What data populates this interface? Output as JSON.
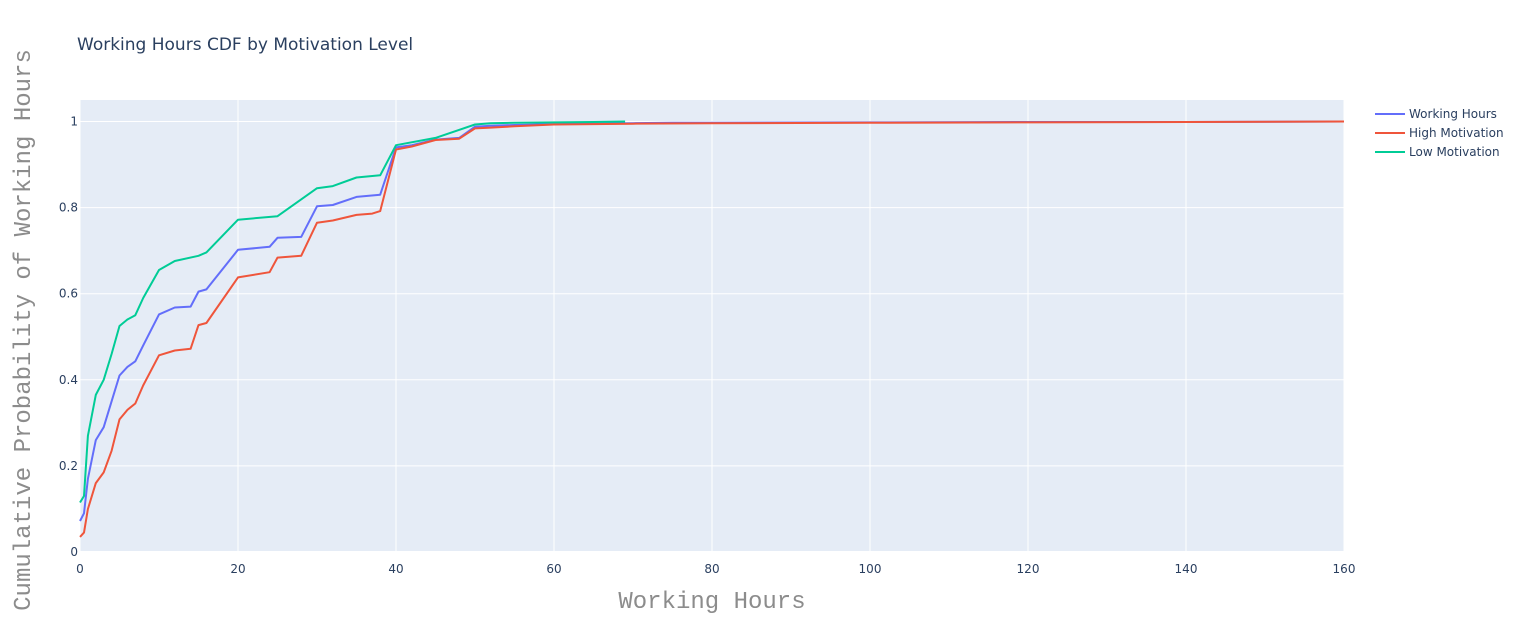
{
  "chart_data": {
    "type": "line",
    "title": "Working Hours CDF by Motivation Level",
    "xlabel": "Working Hours",
    "ylabel": "Cumulative Probability of Working Hours",
    "xlim": [
      0,
      160
    ],
    "ylim": [
      0,
      1.05
    ],
    "x_ticks": [
      0,
      20,
      40,
      60,
      80,
      100,
      120,
      140,
      160
    ],
    "y_ticks": [
      0,
      0.2,
      0.4,
      0.6,
      0.8,
      1
    ],
    "y_tick_labels": [
      "0",
      "0.2",
      "0.4",
      "0.6",
      "0.8",
      "1"
    ],
    "grid": true,
    "legend_position": "top-right",
    "series": [
      {
        "name": "Working Hours",
        "color": "#636efa",
        "x": [
          0,
          0.5,
          1,
          2,
          3,
          4,
          5,
          6,
          7,
          8,
          10,
          12,
          14,
          15,
          16,
          20,
          24,
          25,
          28,
          30,
          32,
          35,
          38,
          40,
          42,
          45,
          48,
          50,
          52,
          55,
          60,
          70,
          75,
          80,
          100,
          120,
          140,
          160
        ],
        "y": [
          0.072,
          0.09,
          0.17,
          0.26,
          0.29,
          0.35,
          0.41,
          0.43,
          0.443,
          0.48,
          0.552,
          0.568,
          0.57,
          0.605,
          0.61,
          0.702,
          0.709,
          0.73,
          0.732,
          0.803,
          0.806,
          0.825,
          0.83,
          0.94,
          0.945,
          0.958,
          0.962,
          0.988,
          0.99,
          0.992,
          0.994,
          0.996,
          0.997,
          0.997,
          0.998,
          0.999,
          0.999,
          1.0
        ]
      },
      {
        "name": "High Motivation",
        "color": "#ef553b",
        "x": [
          0,
          0.5,
          1,
          2,
          3,
          4,
          5,
          6,
          7,
          8,
          10,
          12,
          14,
          15,
          16,
          20,
          24,
          25,
          28,
          30,
          32,
          35,
          37,
          38,
          40,
          42,
          45,
          48,
          50,
          52,
          55,
          60,
          70,
          80,
          100,
          120,
          140,
          160
        ],
        "y": [
          0.035,
          0.045,
          0.1,
          0.16,
          0.185,
          0.235,
          0.308,
          0.33,
          0.345,
          0.387,
          0.457,
          0.468,
          0.472,
          0.527,
          0.532,
          0.638,
          0.65,
          0.684,
          0.688,
          0.765,
          0.77,
          0.783,
          0.786,
          0.792,
          0.935,
          0.942,
          0.957,
          0.96,
          0.984,
          0.986,
          0.989,
          0.993,
          0.995,
          0.996,
          0.997,
          0.998,
          0.999,
          1.0
        ]
      },
      {
        "name": "Low Motivation",
        "color": "#00cc96",
        "x": [
          0,
          0.5,
          1,
          2,
          3,
          4,
          5,
          6,
          7,
          8,
          10,
          12,
          15,
          16,
          20,
          25,
          30,
          32,
          35,
          38,
          40,
          45,
          50,
          52,
          55,
          60,
          65,
          69
        ],
        "y": [
          0.115,
          0.13,
          0.27,
          0.365,
          0.4,
          0.46,
          0.525,
          0.54,
          0.55,
          0.59,
          0.655,
          0.676,
          0.688,
          0.696,
          0.772,
          0.78,
          0.845,
          0.85,
          0.87,
          0.875,
          0.945,
          0.962,
          0.993,
          0.996,
          0.997,
          0.998,
          0.999,
          1.0
        ]
      }
    ]
  }
}
